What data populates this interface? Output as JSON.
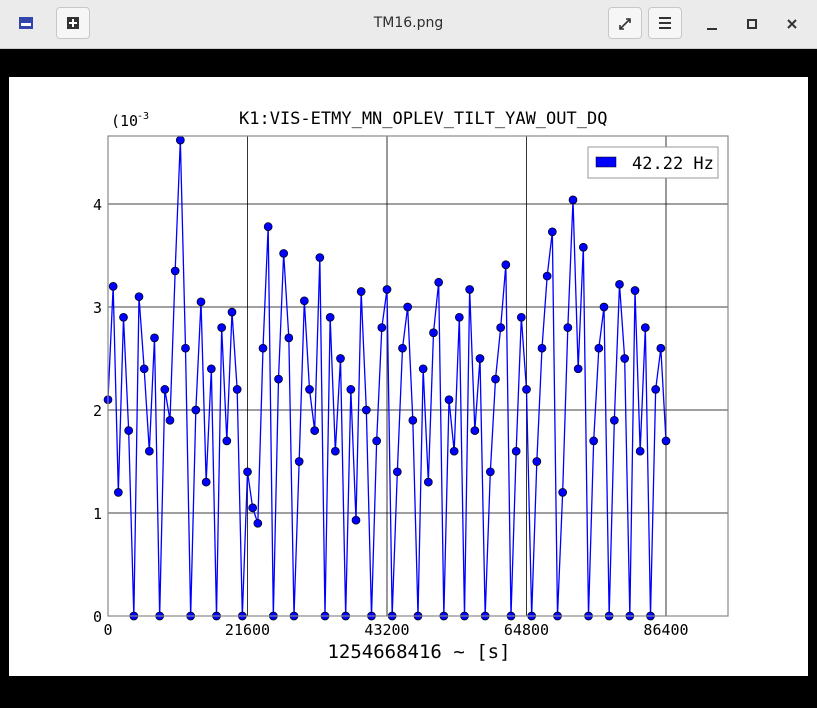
{
  "window": {
    "title": "TM16.png"
  },
  "chart_data": {
    "type": "line",
    "title": "K1:VIS-ETMY_MN_OPLEV_TILT_YAW_OUT_DQ",
    "xlabel": "1254668416 ~ [s]",
    "y_scale_base": "(10",
    "y_scale_exponent": "-3",
    "x": [
      0,
      800,
      1600,
      2400,
      3200,
      4000,
      4800,
      5600,
      6400,
      7200,
      8000,
      8800,
      9600,
      10400,
      11200,
      12000,
      12800,
      13600,
      14400,
      15200,
      16000,
      16800,
      17600,
      18400,
      19200,
      20000,
      20800,
      21600,
      22400,
      23200,
      24000,
      24800,
      25600,
      26400,
      27200,
      28000,
      28800,
      29600,
      30400,
      31200,
      32000,
      32800,
      33600,
      34400,
      35200,
      36000,
      36800,
      37600,
      38400,
      39200,
      40000,
      40800,
      41600,
      42400,
      43200,
      44000,
      44800,
      45600,
      46400,
      47200,
      48000,
      48800,
      49600,
      50400,
      51200,
      52000,
      52800,
      53600,
      54400,
      55200,
      56000,
      56800,
      57600,
      58400,
      59200,
      60000,
      60800,
      61600,
      62400,
      63200,
      64000,
      64800,
      65600,
      66400,
      67200,
      68000,
      68800,
      69600,
      70400,
      71200,
      72000,
      72800,
      73600,
      74400,
      75200,
      76000,
      76800,
      77600,
      78400,
      79200,
      80000,
      80800,
      81600,
      82400,
      83200,
      84000,
      84800,
      85600,
      86400
    ],
    "series": [
      {
        "name": "42.22 Hz",
        "color": "#0000ff",
        "values": [
          2.1,
          3.2,
          1.2,
          2.9,
          1.8,
          0,
          3.1,
          2.4,
          1.6,
          2.7,
          0,
          2.2,
          1.9,
          3.35,
          4.62,
          2.6,
          0,
          2.0,
          3.05,
          1.3,
          2.4,
          0,
          2.8,
          1.7,
          2.95,
          2.2,
          0,
          1.4,
          1.05,
          0.9,
          2.6,
          3.78,
          0,
          2.3,
          3.52,
          2.7,
          0,
          1.5,
          3.06,
          2.2,
          1.8,
          3.48,
          0,
          2.9,
          1.6,
          2.5,
          0,
          2.2,
          0.93,
          3.15,
          2.0,
          0,
          1.7,
          2.8,
          3.17,
          0,
          1.4,
          2.6,
          3.0,
          1.9,
          0,
          2.4,
          1.3,
          2.75,
          3.24,
          0,
          2.1,
          1.6,
          2.9,
          0,
          3.17,
          1.8,
          2.5,
          0,
          1.4,
          2.3,
          2.8,
          3.41,
          0,
          1.6,
          2.9,
          2.2,
          0,
          1.5,
          2.6,
          3.3,
          3.73,
          0,
          1.2,
          2.8,
          4.04,
          2.4,
          3.58,
          0,
          1.7,
          2.6,
          3.0,
          0,
          1.9,
          3.22,
          2.5,
          0,
          3.16,
          1.6,
          2.8,
          0,
          2.2,
          2.6,
          1.7
        ]
      }
    ],
    "xlim": [
      0,
      96000
    ],
    "ylim": [
      0,
      4.66
    ],
    "xticks": [
      0,
      21600,
      43200,
      64800,
      86400
    ],
    "yticks": [
      0,
      1,
      2,
      3,
      4
    ],
    "grid": true,
    "legend": "upper right"
  }
}
